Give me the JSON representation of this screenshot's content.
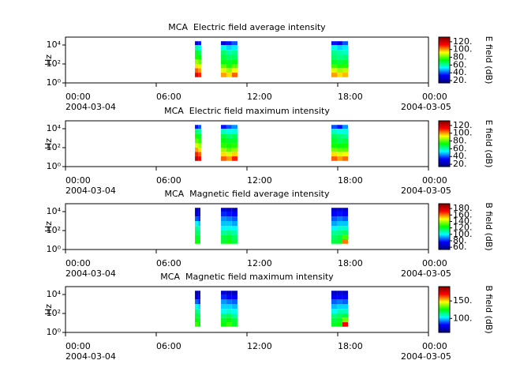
{
  "chart_data": [
    {
      "type": "spectrogram",
      "title": "MCA  Electric field average intensity",
      "y_label": "Hz",
      "colorbar_label": "E field (dB)",
      "xlim": [
        0,
        24
      ],
      "xticks": [
        {
          "value": 0,
          "label": "00:00"
        },
        {
          "value": 6,
          "label": "06:00"
        },
        {
          "value": 12,
          "label": "12:00"
        },
        {
          "value": 18,
          "label": "18:00"
        },
        {
          "value": 24,
          "label": "00:00"
        }
      ],
      "x_date_labels": [
        {
          "value": 0,
          "label": "2004-03-04"
        },
        {
          "value": 24,
          "label": "2004-03-05"
        }
      ],
      "ylim": [
        1,
        68000
      ],
      "log_y": true,
      "yticks": [
        {
          "value": 1,
          "label": "10⁰"
        },
        {
          "value": 100,
          "label": "10²"
        },
        {
          "value": 10000,
          "label": "10⁴"
        }
      ],
      "y_bins": [
        4,
        12,
        36,
        100,
        300,
        1000,
        3000,
        10000,
        25000
      ],
      "zlim": [
        14,
        132
      ],
      "zticks": [
        {
          "value": 20,
          "label": "20."
        },
        {
          "value": 40,
          "label": "40."
        },
        {
          "value": 60,
          "label": "60."
        },
        {
          "value": 80,
          "label": "80."
        },
        {
          "value": 100,
          "label": "100."
        },
        {
          "value": 120,
          "label": "120."
        }
      ],
      "colormap": [
        "#000080",
        "#0000ff",
        "#00ffff",
        "#00ff00",
        "#ffff00",
        "#ff0000",
        "#800000"
      ],
      "blocks": [
        {
          "t": [
            8.56,
            8.77,
            8.97
          ],
          "values": [
            [
              115,
              105,
              95,
              85,
              75,
              70,
              60,
              30
            ],
            [
              110,
              100,
              90,
              80,
              72,
              65,
              55,
              35
            ]
          ]
        },
        {
          "t": [
            10.28,
            10.64,
            11.0,
            11.37
          ],
          "values": [
            [
              100,
              90,
              80,
              72,
              68,
              65,
              55,
              30
            ],
            [
              95,
              85,
              75,
              70,
              65,
              60,
              50,
              35
            ],
            [
              105,
              92,
              80,
              72,
              66,
              62,
              52,
              40
            ]
          ]
        },
        {
          "t": [
            17.58,
            17.95,
            18.31,
            18.68
          ],
          "values": [
            [
              100,
              90,
              78,
              70,
              65,
              62,
              55,
              35
            ],
            [
              95,
              85,
              75,
              68,
              62,
              60,
              50,
              30
            ],
            [
              98,
              88,
              76,
              70,
              64,
              58,
              52,
              40
            ]
          ]
        }
      ]
    },
    {
      "type": "spectrogram",
      "title": "MCA  Electric field maximum intensity",
      "y_label": "Hz",
      "colorbar_label": "E field (dB)",
      "xlim": [
        0,
        24
      ],
      "xticks": [
        {
          "value": 0,
          "label": "00:00"
        },
        {
          "value": 6,
          "label": "06:00"
        },
        {
          "value": 12,
          "label": "12:00"
        },
        {
          "value": 18,
          "label": "18:00"
        },
        {
          "value": 24,
          "label": "00:00"
        }
      ],
      "x_date_labels": [
        {
          "value": 0,
          "label": "2004-03-04"
        },
        {
          "value": 24,
          "label": "2004-03-05"
        }
      ],
      "ylim": [
        1,
        68000
      ],
      "log_y": true,
      "yticks": [
        {
          "value": 1,
          "label": "10⁰"
        },
        {
          "value": 100,
          "label": "10²"
        },
        {
          "value": 10000,
          "label": "10⁴"
        }
      ],
      "y_bins": [
        4,
        12,
        36,
        100,
        300,
        1000,
        3000,
        10000,
        25000
      ],
      "zlim": [
        14,
        132
      ],
      "zticks": [
        {
          "value": 20,
          "label": "20."
        },
        {
          "value": 40,
          "label": "40."
        },
        {
          "value": 60,
          "label": "60."
        },
        {
          "value": 80,
          "label": "80."
        },
        {
          "value": 100,
          "label": "100."
        },
        {
          "value": 120,
          "label": "120."
        }
      ],
      "colormap": [
        "#000080",
        "#0000ff",
        "#00ffff",
        "#00ff00",
        "#ffff00",
        "#ff0000",
        "#800000"
      ],
      "blocks": [
        {
          "t": [
            8.56,
            8.77,
            8.97
          ],
          "values": [
            [
              120,
              110,
              100,
              90,
              80,
              74,
              64,
              35
            ],
            [
              115,
              105,
              95,
              85,
              76,
              70,
              60,
              40
            ]
          ]
        },
        {
          "t": [
            10.28,
            10.64,
            11.0,
            11.37
          ],
          "values": [
            [
              105,
              95,
              85,
              76,
              72,
              68,
              58,
              35
            ],
            [
              100,
              90,
              80,
              74,
              70,
              64,
              55,
              40
            ],
            [
              110,
              96,
              84,
              76,
              70,
              66,
              56,
              45
            ]
          ]
        },
        {
          "t": [
            17.58,
            17.95,
            18.31,
            18.68
          ],
          "values": [
            [
              105,
              95,
              82,
              74,
              70,
              66,
              58,
              40
            ],
            [
              100,
              90,
              80,
              72,
              66,
              64,
              55,
              35
            ],
            [
              104,
              92,
              80,
              74,
              68,
              62,
              56,
              45
            ]
          ]
        }
      ]
    },
    {
      "type": "spectrogram",
      "title": "MCA  Magnetic field average intensity",
      "y_label": "Hz",
      "colorbar_label": "B field (dB)",
      "xlim": [
        0,
        24
      ],
      "xticks": [
        {
          "value": 0,
          "label": "00:00"
        },
        {
          "value": 6,
          "label": "06:00"
        },
        {
          "value": 12,
          "label": "12:00"
        },
        {
          "value": 18,
          "label": "18:00"
        },
        {
          "value": 24,
          "label": "00:00"
        }
      ],
      "x_date_labels": [
        {
          "value": 0,
          "label": "2004-03-04"
        },
        {
          "value": 24,
          "label": "2004-03-05"
        }
      ],
      "ylim": [
        1,
        68000
      ],
      "log_y": true,
      "yticks": [
        {
          "value": 1,
          "label": "10⁰"
        },
        {
          "value": 100,
          "label": "10²"
        },
        {
          "value": 10000,
          "label": "10⁴"
        }
      ],
      "y_bins": [
        4,
        12,
        36,
        100,
        300,
        1000,
        3000,
        10000,
        25000
      ],
      "zlim": [
        53,
        195
      ],
      "zticks": [
        {
          "value": 60,
          "label": "60."
        },
        {
          "value": 80,
          "label": "80."
        },
        {
          "value": 100,
          "label": "100."
        },
        {
          "value": 120,
          "label": "120."
        },
        {
          "value": 140,
          "label": "140."
        },
        {
          "value": 160,
          "label": "160."
        },
        {
          "value": 180,
          "label": "180."
        }
      ],
      "colormap": [
        "#000080",
        "#0000ff",
        "#00ffff",
        "#00ff00",
        "#ffff00",
        "#ff0000",
        "#800000"
      ],
      "blocks": [
        {
          "t": [
            8.56,
            8.77,
            8.92
          ],
          "values": [
            [
              125,
              120,
              115,
              110,
              100,
              85,
              70,
              65
            ],
            [
              120,
              118,
              112,
              105,
              95,
              80,
              70,
              62
            ]
          ]
        },
        {
          "t": [
            10.28,
            10.64,
            11.0,
            11.37
          ],
          "values": [
            [
              120,
              118,
              110,
              100,
              95,
              90,
              80,
              70
            ],
            [
              125,
              120,
              112,
              102,
              95,
              88,
              78,
              68
            ],
            [
              118,
              115,
              108,
              100,
              92,
              85,
              75,
              65
            ]
          ]
        },
        {
          "t": [
            17.58,
            17.95,
            18.31,
            18.68
          ],
          "values": [
            [
              118,
              115,
              110,
              100,
              92,
              85,
              75,
              68
            ],
            [
              120,
              118,
              112,
              105,
              95,
              88,
              78,
              70
            ],
            [
              160,
              130,
              115,
              105,
              95,
              85,
              75,
              68
            ]
          ]
        }
      ]
    },
    {
      "type": "spectrogram",
      "title": "MCA  Magnetic field maximum intensity",
      "y_label": "Hz",
      "colorbar_label": "B field (dB)",
      "xlim": [
        0,
        24
      ],
      "xticks": [
        {
          "value": 0,
          "label": "00:00"
        },
        {
          "value": 6,
          "label": "06:00"
        },
        {
          "value": 12,
          "label": "12:00"
        },
        {
          "value": 18,
          "label": "18:00"
        },
        {
          "value": 24,
          "label": "00:00"
        }
      ],
      "x_date_labels": [
        {
          "value": 0,
          "label": "2004-03-04"
        },
        {
          "value": 24,
          "label": "2004-03-05"
        }
      ],
      "ylim": [
        1,
        68000
      ],
      "log_y": true,
      "yticks": [
        {
          "value": 1,
          "label": "10⁰"
        },
        {
          "value": 100,
          "label": "10²"
        },
        {
          "value": 10000,
          "label": "10⁴"
        }
      ],
      "y_bins": [
        4,
        12,
        36,
        100,
        300,
        1000,
        3000,
        10000,
        25000
      ],
      "zlim": [
        60,
        191
      ],
      "zticks": [
        {
          "value": 100,
          "label": "100."
        },
        {
          "value": 150,
          "label": "150."
        }
      ],
      "colormap": [
        "#000080",
        "#0000ff",
        "#00ffff",
        "#00ff00",
        "#ffff00",
        "#ff0000",
        "#800000"
      ],
      "blocks": [
        {
          "t": [
            8.56,
            8.77,
            8.92
          ],
          "values": [
            [
              130,
              125,
              120,
              115,
              105,
              90,
              75,
              70
            ],
            [
              125,
              122,
              118,
              110,
              100,
              85,
              75,
              68
            ]
          ]
        },
        {
          "t": [
            10.28,
            10.64,
            11.0,
            11.37
          ],
          "values": [
            [
              125,
              122,
              115,
              105,
              100,
              95,
              85,
              75
            ],
            [
              130,
              125,
              118,
              108,
              100,
              92,
              82,
              72
            ],
            [
              122,
              120,
              112,
              105,
              98,
              90,
              80,
              70
            ]
          ]
        },
        {
          "t": [
            17.58,
            17.95,
            18.31,
            18.68
          ],
          "values": [
            [
              122,
              120,
              115,
              105,
              98,
              90,
              80,
              72
            ],
            [
              125,
              122,
              118,
              110,
              100,
              92,
              82,
              74
            ],
            [
              170,
              135,
              120,
              110,
              100,
              90,
              80,
              72
            ]
          ]
        }
      ]
    }
  ]
}
